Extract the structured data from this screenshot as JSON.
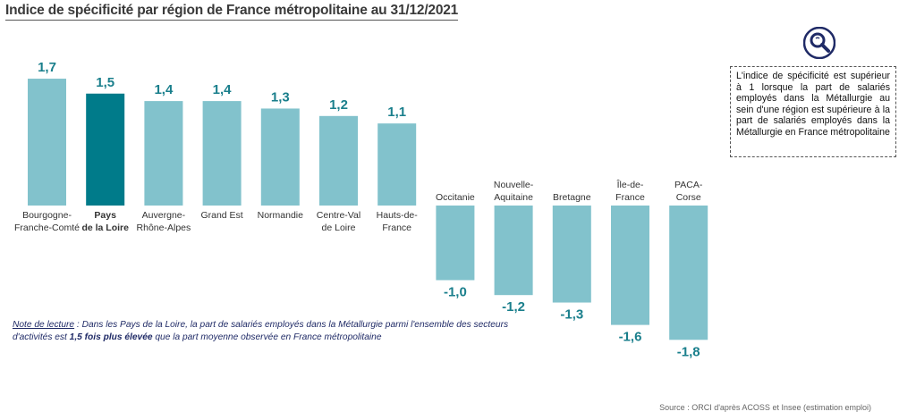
{
  "title": "Indice de spécificité par région de France métropolitaine au 31/12/2021",
  "chart_data": {
    "type": "bar",
    "categories": [
      [
        "Bourgogne-",
        "Franche-Comté"
      ],
      [
        "Pays",
        "de la Loire"
      ],
      [
        "Auvergne-",
        "Rhône-Alpes"
      ],
      [
        "Grand Est"
      ],
      [
        "Normandie"
      ],
      [
        "Centre-Val",
        "de Loire"
      ],
      [
        "Hauts-de-",
        "France"
      ],
      [
        "Occitanie"
      ],
      [
        "Nouvelle-",
        "Aquitaine"
      ],
      [
        "Bretagne"
      ],
      [
        "Île-de-",
        "France"
      ],
      [
        "PACA-",
        "Corse"
      ]
    ],
    "values": [
      1.7,
      1.5,
      1.4,
      1.4,
      1.3,
      1.2,
      1.1,
      -1.0,
      -1.2,
      -1.3,
      -1.6,
      -1.8
    ],
    "value_labels": [
      "1,7",
      "1,5",
      "1,4",
      "1,4",
      "1,3",
      "1,2",
      "1,1",
      "-1,0",
      "-1,2",
      "-1,3",
      "-1,6",
      "-1,8"
    ],
    "highlight_index": 1,
    "colors": {
      "bar": "#82c2cc",
      "highlight": "#007b8a",
      "value_label": "#1a7f8c",
      "category_label": "#333333"
    }
  },
  "note": {
    "label": "Note de lecture",
    "text_before": " : Dans les Pays de la Loire, la part de salariés employés dans la Métallurgie parmi l'ensemble des secteurs d'activités est ",
    "text_bold": "1,5 fois plus élevée",
    "text_after": " que la part moyenne observée en France métropolitaine"
  },
  "info_box": "L'indice de spécificité est supérieur à 1 lorsque la part de salariés employés dans la Métallurgie au sein d'une région est supérieure à la part de salariés employés dans la Métallurgie en France métropolitaine",
  "info_icon": "search-icon",
  "source": "Source : ORCI d'après ACOSS et Insee (estimation emploi)"
}
